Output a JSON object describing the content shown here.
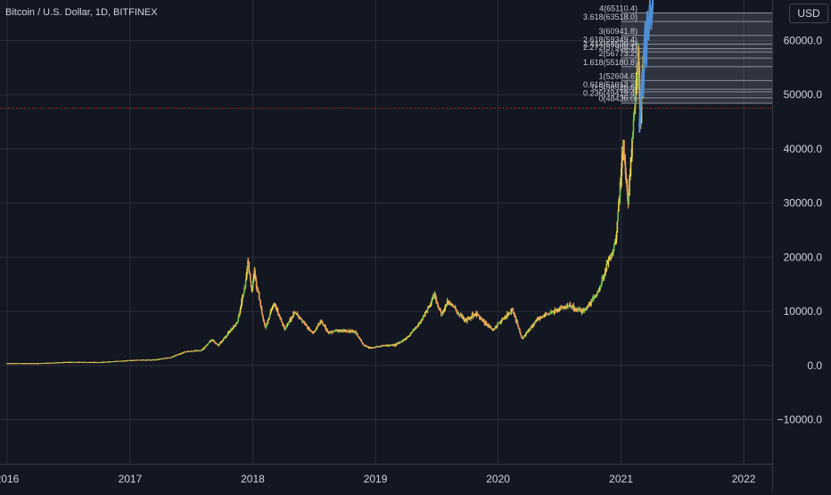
{
  "header": {
    "title": "Bitcoin / U.S. Dollar, 1D, BITFINEX",
    "currency": "USD"
  },
  "colors": {
    "background": "#131722",
    "grid": "#2a2e39",
    "axis_text": "#d1d4dc",
    "candle_up": "#e9d64a",
    "candle_down": "#f0a15a",
    "candle_alt": "#6fbf4a",
    "projection": "#4e8fd6",
    "fib_line": "#8a8f9c",
    "fib_fill": "#9aa0ad",
    "base_line": "#d03a3a"
  },
  "chart_data": {
    "type": "candlestick",
    "title": "Bitcoin / U.S. Dollar, 1D, BITFINEX",
    "x_ticks": [
      "2016",
      "2017",
      "2018",
      "2019",
      "2020",
      "2021",
      "2022"
    ],
    "y_ticks": [
      -10000,
      0,
      10000,
      20000,
      30000,
      40000,
      50000,
      60000
    ],
    "y_tick_labels": [
      "−10000.0",
      "0.0",
      "10000.0",
      "20000.0",
      "30000.0",
      "40000.0",
      "50000.0",
      "60000.0"
    ],
    "ylim": [
      -17000,
      67000
    ],
    "xlim": [
      "2016-01-01",
      "2022-06-01"
    ],
    "grid": true,
    "price_series": [
      [
        "2016-01-01",
        430
      ],
      [
        "2016-04-01",
        420
      ],
      [
        "2016-07-01",
        650
      ],
      [
        "2016-10-01",
        610
      ],
      [
        "2017-01-01",
        970
      ],
      [
        "2017-03-15",
        1100
      ],
      [
        "2017-05-01",
        1500
      ],
      [
        "2017-06-15",
        2600
      ],
      [
        "2017-08-01",
        2800
      ],
      [
        "2017-09-01",
        4700
      ],
      [
        "2017-09-20",
        3700
      ],
      [
        "2017-10-15",
        5600
      ],
      [
        "2017-11-15",
        7800
      ],
      [
        "2017-12-10",
        15000
      ],
      [
        "2017-12-17",
        19500
      ],
      [
        "2017-12-28",
        14000
      ],
      [
        "2018-01-06",
        17000
      ],
      [
        "2018-02-06",
        6900
      ],
      [
        "2018-03-05",
        11500
      ],
      [
        "2018-04-06",
        6600
      ],
      [
        "2018-05-05",
        9800
      ],
      [
        "2018-06-29",
        5900
      ],
      [
        "2018-07-25",
        8200
      ],
      [
        "2018-08-14",
        6000
      ],
      [
        "2018-09-15",
        6500
      ],
      [
        "2018-11-01",
        6300
      ],
      [
        "2018-11-25",
        3900
      ],
      [
        "2018-12-15",
        3200
      ],
      [
        "2019-01-15",
        3600
      ],
      [
        "2019-03-01",
        3800
      ],
      [
        "2019-04-03",
        5000
      ],
      [
        "2019-05-15",
        8000
      ],
      [
        "2019-06-26",
        13000
      ],
      [
        "2019-07-16",
        9400
      ],
      [
        "2019-08-06",
        11800
      ],
      [
        "2019-09-25",
        8300
      ],
      [
        "2019-10-26",
        9500
      ],
      [
        "2019-12-17",
        6600
      ],
      [
        "2020-02-13",
        10400
      ],
      [
        "2020-03-12",
        4900
      ],
      [
        "2020-04-30",
        8800
      ],
      [
        "2020-06-01",
        9700
      ],
      [
        "2020-07-27",
        11000
      ],
      [
        "2020-09-08",
        10000
      ],
      [
        "2020-10-21",
        12900
      ],
      [
        "2020-11-20",
        18500
      ],
      [
        "2020-12-17",
        23000
      ],
      [
        "2021-01-08",
        41000
      ],
      [
        "2021-01-22",
        30500
      ],
      [
        "2021-02-08",
        46000
      ],
      [
        "2021-02-21",
        57000
      ],
      [
        "2021-02-28",
        45000
      ],
      [
        "2021-03-10",
        57000
      ]
    ],
    "projection_series": [
      [
        "2021-02-25",
        44000
      ],
      [
        "2021-03-01",
        49000
      ],
      [
        "2021-03-05",
        53500
      ],
      [
        "2021-03-08",
        50500
      ],
      [
        "2021-03-11",
        58000
      ],
      [
        "2021-03-14",
        62500
      ],
      [
        "2021-03-17",
        56000
      ],
      [
        "2021-03-20",
        64500
      ],
      [
        "2021-03-24",
        61000
      ],
      [
        "2021-03-28",
        66500
      ],
      [
        "2021-04-01",
        63000
      ],
      [
        "2021-04-05",
        67000
      ]
    ],
    "horizontal_line": {
      "y": 47500,
      "style": "dotted"
    },
    "fib_levels": [
      {
        "label": "4(65110.4)",
        "value": 65110.4
      },
      {
        "label": "3.618(63518.0)",
        "value": 63518.0
      },
      {
        "label": "3(60941.8)",
        "value": 60941.8
      },
      {
        "label": "2.618(59349.4)",
        "value": 59349.4
      },
      {
        "label": "2.414(58500.3)",
        "value": 58500.3
      },
      {
        "label": "2.272(57908.1)",
        "value": 57908.1
      },
      {
        "label": "2(56773.2)",
        "value": 56773.2
      },
      {
        "label": "1.618(55180.8)",
        "value": 55180.8
      },
      {
        "label": "1(52604.6)",
        "value": 52604.6
      },
      {
        "label": "0.618(51012.2)",
        "value": 51012.2
      },
      {
        "label": "0.5(50520.6)",
        "value": 50520.6
      },
      {
        "label": "0.236(49419.4)",
        "value": 49419.4
      },
      {
        "label": "0(48436.0)",
        "value": 48436.0
      }
    ]
  }
}
